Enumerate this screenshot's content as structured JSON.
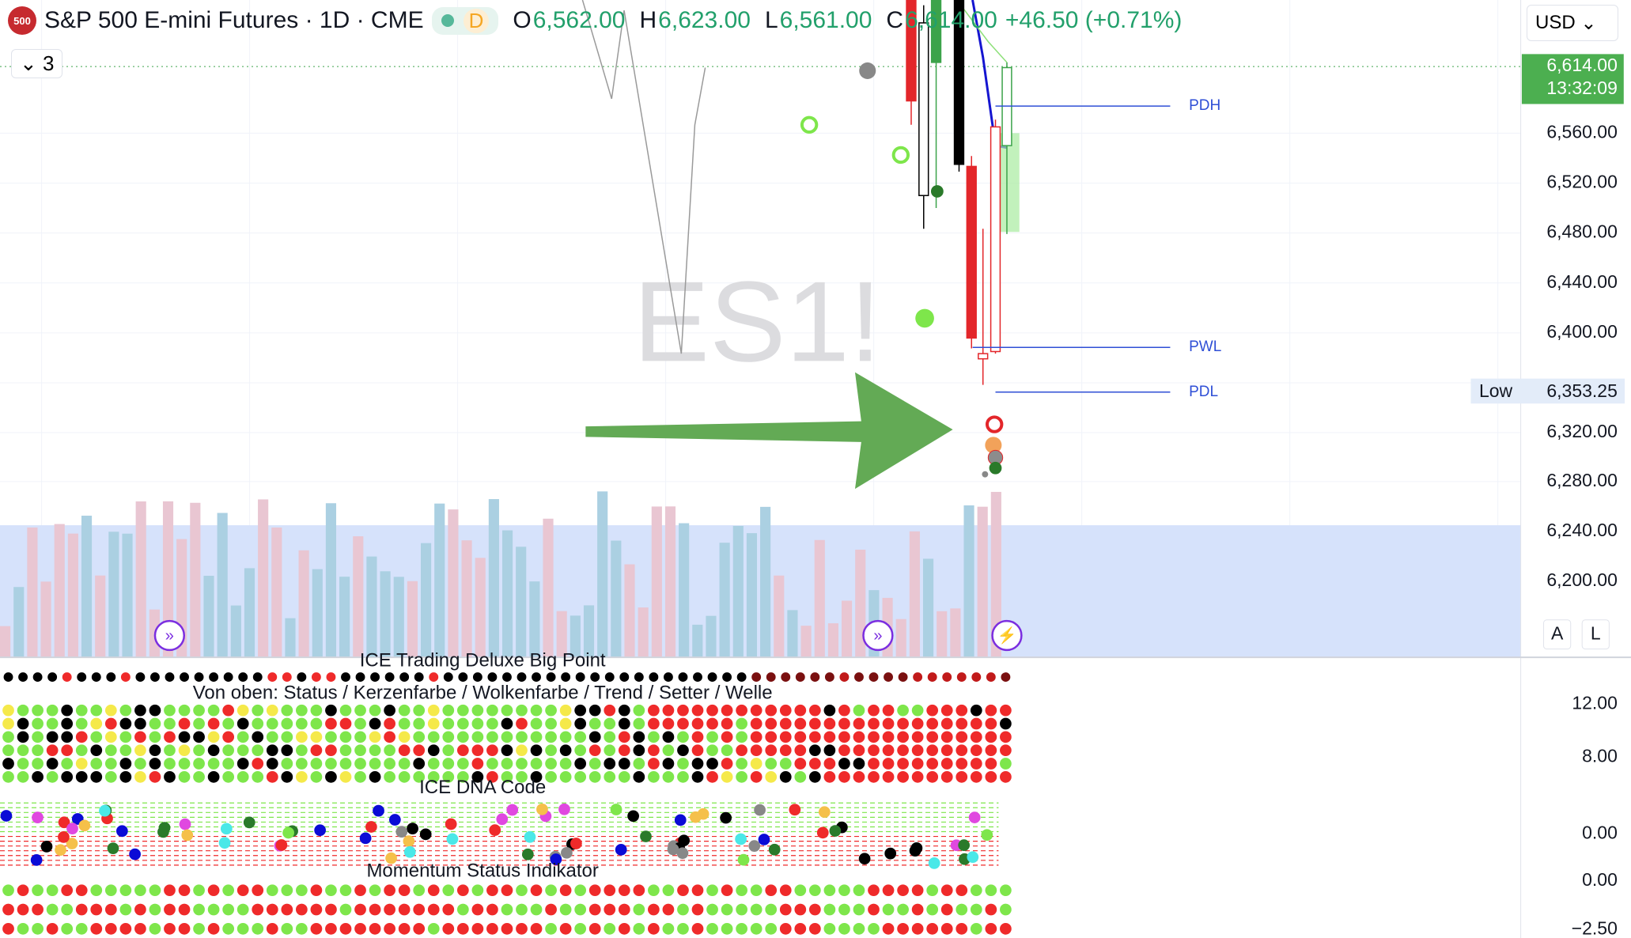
{
  "header": {
    "logo": "500",
    "title": "S&P 500 E-mini Futures · 1D · CME",
    "badge": "D",
    "open_label": "O",
    "open": "6,562.00",
    "high_label": "H",
    "high": "6,623.00",
    "low_label": "L",
    "low": "6,561.00",
    "close_label": "C",
    "close": "6,614.00",
    "change": "+46.50 (+0.71%)",
    "indicators_count": "3",
    "currency": "USD"
  },
  "watermark": "ES1!",
  "price_axis": {
    "ticks": [
      "6,560.00",
      "6,520.00",
      "6,480.00",
      "6,440.00",
      "6,400.00",
      "6,320.00",
      "6,280.00",
      "6,240.00",
      "6,200.00"
    ],
    "last_price": "6,614.00",
    "countdown": "13:32:09",
    "low_tag": "Low",
    "low_price": "6,353.25"
  },
  "levels": [
    {
      "label": "PDH"
    },
    {
      "label": "PWL"
    },
    {
      "label": "PDL"
    }
  ],
  "scale_buttons": [
    "A",
    "L"
  ],
  "panes": [
    {
      "title": "ICE Trading Deluxe Big Point"
    },
    {
      "title": "Von oben: Status / Kerzenfarbe / Wolkenfarbe / Trend / Setter / Welle",
      "ticks": [
        "12.00",
        "8.00"
      ]
    },
    {
      "title": "ICE DNA Code",
      "ticks": [
        "0.00"
      ]
    },
    {
      "title": "Momentum Status Indikator",
      "ticks": [
        "0.00",
        "−2.50"
      ]
    }
  ]
}
